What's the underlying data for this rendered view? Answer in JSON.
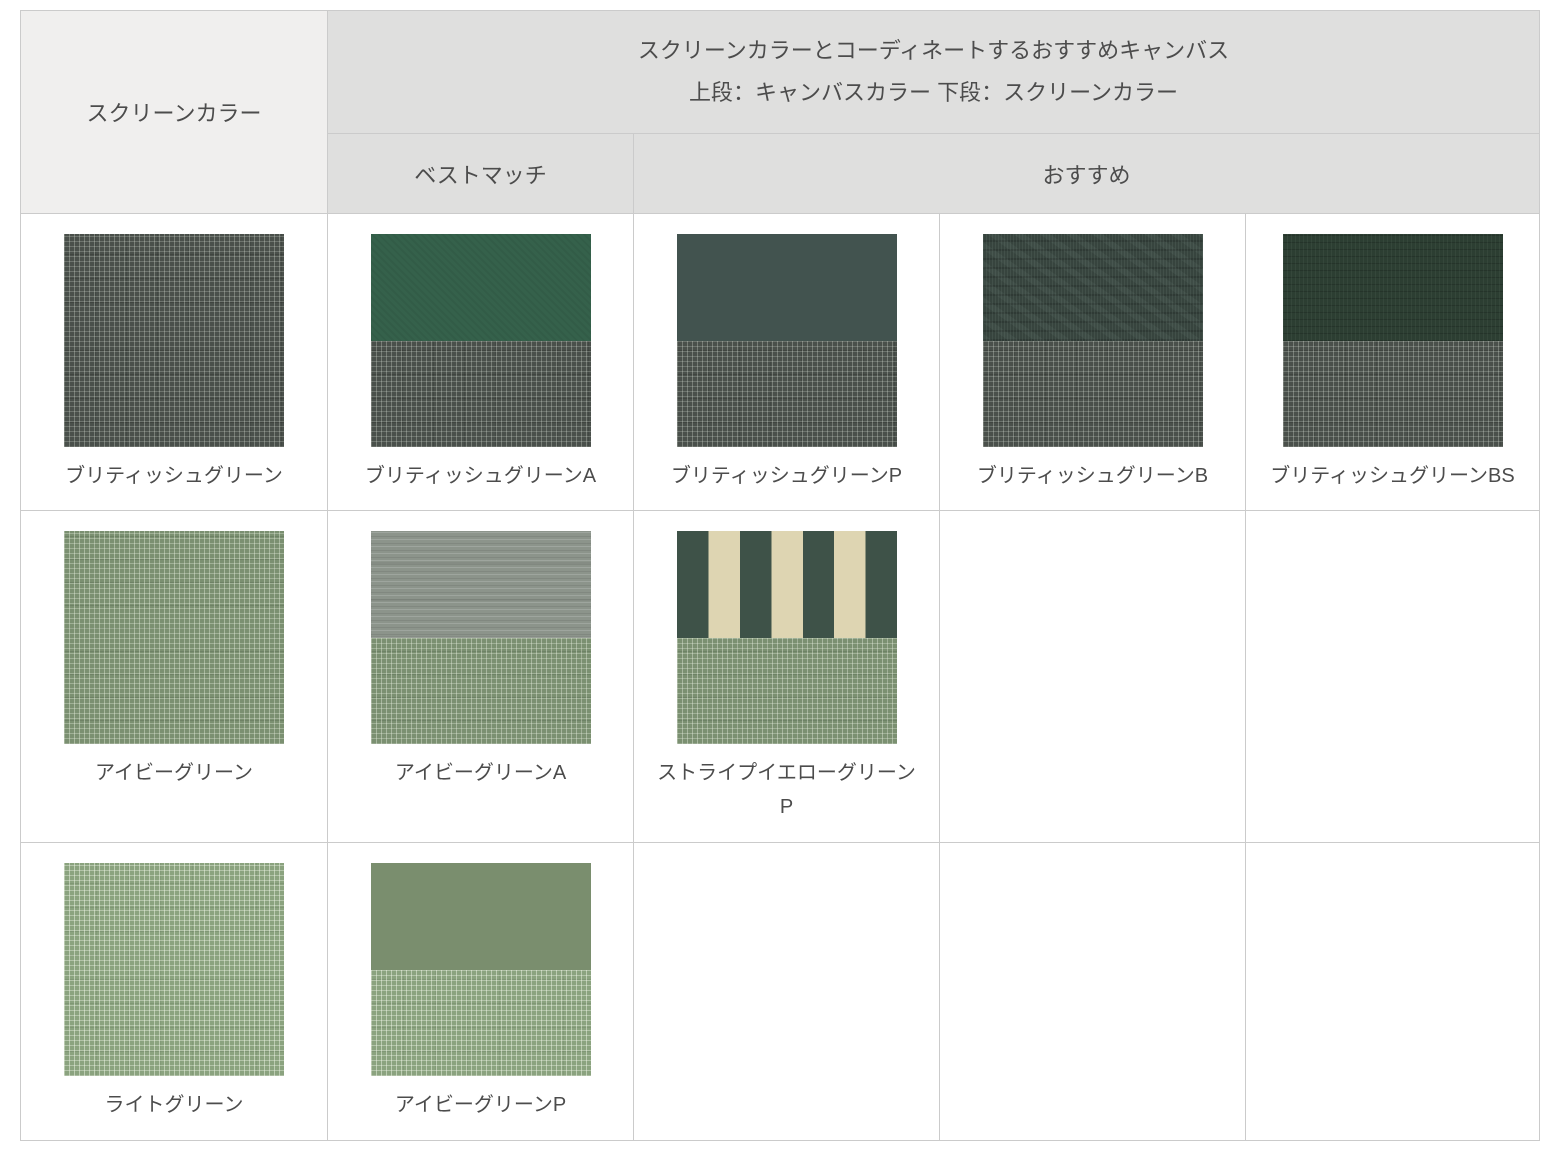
{
  "header": {
    "screen_color_label": "スクリーンカラー",
    "recommend_title_line1": "スクリーンカラーとコーディネートするおすすめキャンバス",
    "recommend_title_line2": "上段：キャンバスカラー 下段：スクリーンカラー",
    "best_match_label": "ベストマッチ",
    "recommended_label": "おすすめ"
  },
  "colors": {
    "table_border": "#cbcbcb",
    "header_left_bg": "#f0efee",
    "header_right_bg": "#dfdfde",
    "text": "#4c4c4c",
    "british_green_screen": "#4a504b",
    "british_green_a_canvas": "#35614b",
    "british_green_p_canvas": "#42534f",
    "british_green_b_canvas": "#37443e",
    "british_green_bs_canvas": "#2c3e32",
    "ivy_green_screen": "#7b9071",
    "ivy_green_a_canvas": "#8c948b",
    "stripe_dark_green": "#3e5248",
    "stripe_cream": "#ded5b2",
    "light_green_screen": "#8ba37f",
    "ivy_green_p_canvas": "#7a8e6e"
  },
  "rows": [
    {
      "screen": {
        "label": "ブリティッシュグリーン",
        "tex": "screen-british"
      },
      "cells": [
        {
          "label": "ブリティッシュグリーンA",
          "top": "canvas-british-a",
          "bottom": "screen-british"
        },
        {
          "label": "ブリティッシュグリーンP",
          "top": "canvas-british-p",
          "bottom": "screen-british"
        },
        {
          "label": "ブリティッシュグリーンB",
          "top": "canvas-british-b",
          "bottom": "screen-british"
        },
        {
          "label": "ブリティッシュグリーンBS",
          "top": "canvas-british-bs",
          "bottom": "screen-british"
        }
      ]
    },
    {
      "screen": {
        "label": "アイビーグリーン",
        "tex": "screen-ivy"
      },
      "cells": [
        {
          "label": "アイビーグリーンA",
          "top": "canvas-ivy-a",
          "bottom": "screen-ivy"
        },
        {
          "label": "ストライプイエローグリーンP",
          "top": "canvas-stripe-yellow-green",
          "bottom": "screen-ivy"
        }
      ]
    },
    {
      "screen": {
        "label": "ライトグリーン",
        "tex": "screen-light"
      },
      "cells": [
        {
          "label": "アイビーグリーンP",
          "top": "canvas-ivy-p",
          "bottom": "screen-light"
        }
      ]
    }
  ]
}
